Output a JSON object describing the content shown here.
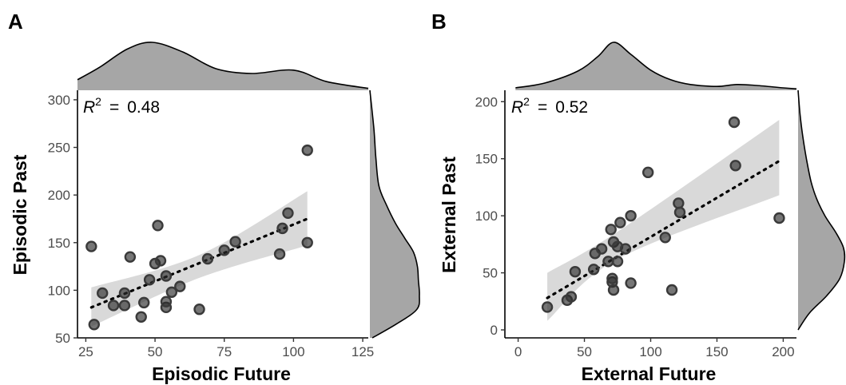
{
  "figure": {
    "panels": [
      {
        "label": "A",
        "xlabel": "Episodic Future",
        "ylabel": "Episodic Past",
        "r2_symbol": "R",
        "r2_exponent": "2",
        "r2_equals": "=",
        "r2_value": "0.48"
      },
      {
        "label": "B",
        "xlabel": "External Future",
        "ylabel": "External Past",
        "r2_symbol": "R",
        "r2_exponent": "2",
        "r2_equals": "=",
        "r2_value": "0.52"
      }
    ]
  },
  "chart_data": [
    {
      "type": "scatter",
      "panel": "A",
      "xlabel": "Episodic Future",
      "ylabel": "Episodic Past",
      "xlim": [
        22,
        127
      ],
      "ylim": [
        50,
        310
      ],
      "xticks": [
        25,
        50,
        75,
        100,
        125
      ],
      "yticks": [
        50,
        100,
        150,
        200,
        250,
        300
      ],
      "r2": 0.48,
      "points": [
        [
          27,
          146
        ],
        [
          28,
          64
        ],
        [
          31,
          97
        ],
        [
          35,
          84
        ],
        [
          39,
          84
        ],
        [
          39,
          97
        ],
        [
          41,
          135
        ],
        [
          45,
          72
        ],
        [
          46,
          87
        ],
        [
          48,
          111
        ],
        [
          50,
          128
        ],
        [
          51,
          168
        ],
        [
          52,
          131
        ],
        [
          54,
          82
        ],
        [
          54,
          88
        ],
        [
          54,
          115
        ],
        [
          56,
          98
        ],
        [
          59,
          104
        ],
        [
          66,
          80
        ],
        [
          69,
          133
        ],
        [
          75,
          142
        ],
        [
          79,
          151
        ],
        [
          95,
          138
        ],
        [
          96,
          165
        ],
        [
          98,
          181
        ],
        [
          105,
          150
        ],
        [
          105,
          247
        ]
      ],
      "fit": {
        "x": [
          27,
          105
        ],
        "y": [
          82,
          175
        ]
      },
      "ci_band": {
        "x": [
          27,
          66,
          105
        ],
        "lower": [
          62,
          113,
          147
        ],
        "upper": [
          103,
          137,
          204
        ]
      },
      "marginal_top": {
        "x": [
          22,
          30,
          40,
          49,
          60,
          72,
          85,
          100,
          112,
          127
        ],
        "density": [
          0.22,
          0.48,
          0.86,
          1.0,
          0.8,
          0.45,
          0.35,
          0.42,
          0.18,
          0.04
        ]
      },
      "marginal_right": {
        "y": [
          50,
          65,
          80,
          95,
          110,
          125,
          140,
          155,
          170,
          190,
          210,
          240,
          270,
          310
        ],
        "density": [
          0.05,
          0.55,
          0.95,
          1.0,
          0.98,
          0.96,
          0.88,
          0.7,
          0.52,
          0.33,
          0.18,
          0.12,
          0.08,
          0.0
        ]
      },
      "grid": false
    },
    {
      "type": "scatter",
      "panel": "B",
      "xlabel": "External Future",
      "ylabel": "External Past",
      "xlim": [
        -10,
        210
      ],
      "ylim": [
        -7,
        210
      ],
      "xticks": [
        0,
        50,
        100,
        150,
        200
      ],
      "yticks": [
        0,
        50,
        100,
        150,
        200
      ],
      "r2": 0.52,
      "points": [
        [
          22,
          20
        ],
        [
          37,
          26
        ],
        [
          40,
          29
        ],
        [
          43,
          51
        ],
        [
          57,
          53
        ],
        [
          58,
          67
        ],
        [
          63,
          71
        ],
        [
          68,
          60
        ],
        [
          70,
          88
        ],
        [
          71,
          42
        ],
        [
          71,
          45
        ],
        [
          72,
          35
        ],
        [
          72,
          77
        ],
        [
          75,
          60
        ],
        [
          75,
          73
        ],
        [
          77,
          94
        ],
        [
          81,
          71
        ],
        [
          85,
          41
        ],
        [
          85,
          100
        ],
        [
          98,
          138
        ],
        [
          111,
          81
        ],
        [
          116,
          35
        ],
        [
          121,
          111
        ],
        [
          122,
          103
        ],
        [
          163,
          182
        ],
        [
          164,
          144
        ],
        [
          197,
          98
        ]
      ],
      "fit": {
        "x": [
          22,
          197
        ],
        "y": [
          28,
          148
        ]
      },
      "ci_band": {
        "x": [
          22,
          75,
          197
        ],
        "lower": [
          8,
          62,
          118
        ],
        "upper": [
          50,
          86,
          184
        ]
      },
      "marginal_top": {
        "x": [
          -2,
          20,
          45,
          60,
          72,
          85,
          100,
          115,
          130,
          150,
          165,
          180,
          200,
          210
        ],
        "density": [
          0.05,
          0.15,
          0.4,
          0.7,
          1.0,
          0.75,
          0.42,
          0.22,
          0.12,
          0.08,
          0.12,
          0.1,
          0.05,
          0.03
        ]
      },
      "marginal_right": {
        "y": [
          0,
          15,
          30,
          45,
          60,
          72,
          85,
          100,
          115,
          130,
          150,
          170,
          190,
          210
        ],
        "density": [
          0.0,
          0.25,
          0.62,
          0.9,
          1.0,
          0.98,
          0.82,
          0.58,
          0.4,
          0.28,
          0.18,
          0.1,
          0.04,
          0.0
        ]
      },
      "grid": false
    }
  ]
}
